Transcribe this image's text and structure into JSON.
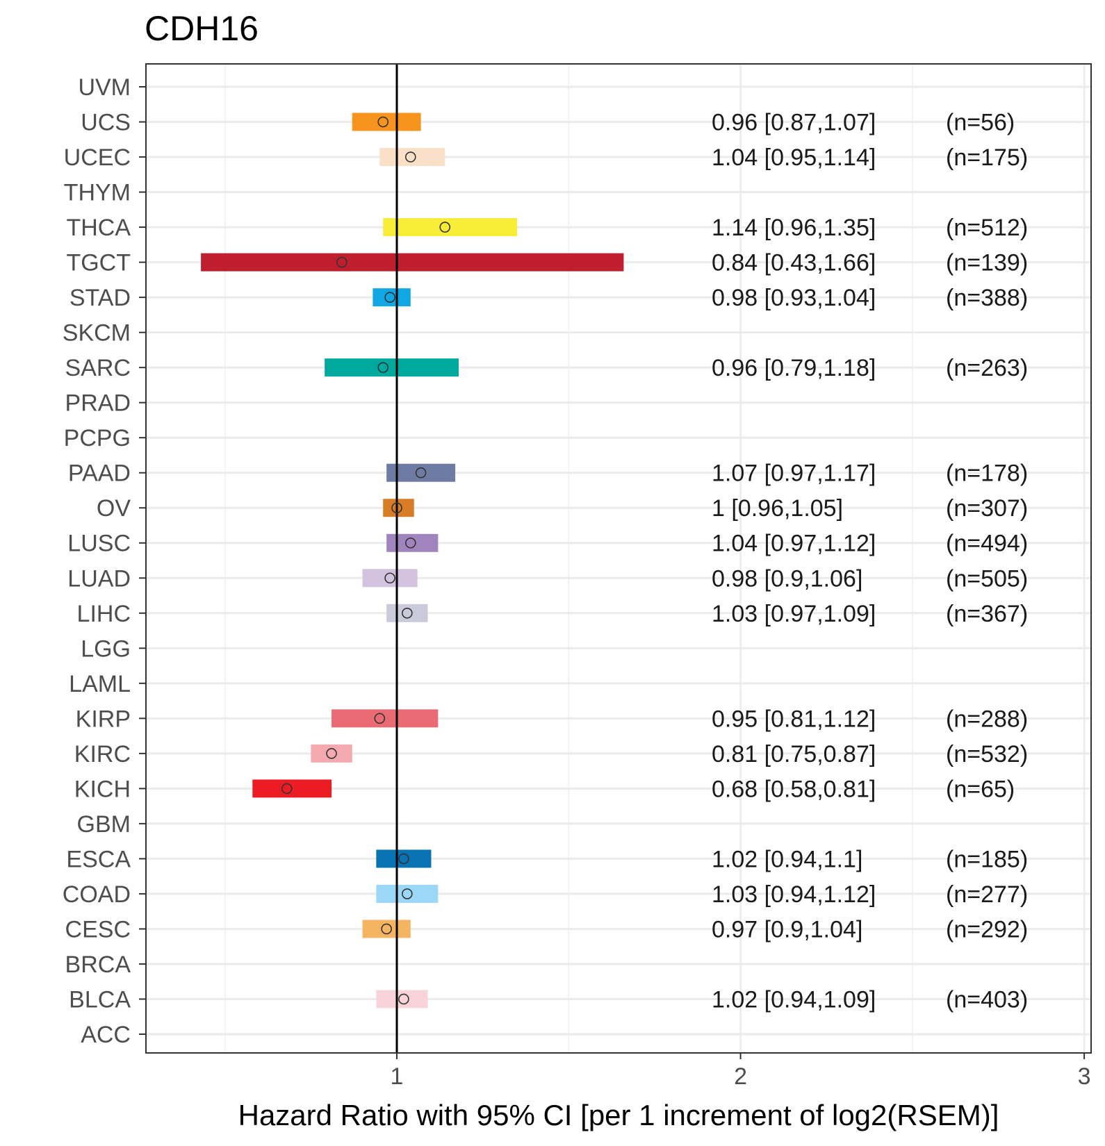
{
  "chart_data": {
    "type": "forest",
    "title": "CDH16",
    "xlabel": "Hazard Ratio with 95% CI [per 1 increment of log2(RSEM)]",
    "ylabel": "",
    "xlim": [
      0.27,
      3.02
    ],
    "xticks": [
      1,
      2,
      3
    ],
    "xtick_labels": [
      "1",
      "2",
      "3"
    ],
    "reference_line": 1,
    "grid": true,
    "rows": [
      {
        "label": "UVM"
      },
      {
        "label": "UCS",
        "hr": 0.96,
        "lower": 0.87,
        "upper": 1.07,
        "text": "0.96 [0.87,1.07]",
        "n": "(n=56)",
        "color": "#F7941D"
      },
      {
        "label": "UCEC",
        "hr": 1.04,
        "lower": 0.95,
        "upper": 1.14,
        "text": "1.04 [0.95,1.14]",
        "n": "(n=175)",
        "color": "#FBE0C8"
      },
      {
        "label": "THYM"
      },
      {
        "label": "THCA",
        "hr": 1.14,
        "lower": 0.96,
        "upper": 1.35,
        "text": "1.14 [0.96,1.35]",
        "n": "(n=512)",
        "color": "#F7EC37"
      },
      {
        "label": "TGCT",
        "hr": 0.84,
        "lower": 0.43,
        "upper": 1.66,
        "text": "0.84 [0.43,1.66]",
        "n": "(n=139)",
        "color": "#BE1E2D"
      },
      {
        "label": "STAD",
        "hr": 0.98,
        "lower": 0.93,
        "upper": 1.04,
        "text": "0.98 [0.93,1.04]",
        "n": "(n=388)",
        "color": "#11A7E4"
      },
      {
        "label": "SKCM"
      },
      {
        "label": "SARC",
        "hr": 0.96,
        "lower": 0.79,
        "upper": 1.18,
        "text": "0.96 [0.79,1.18]",
        "n": "(n=263)",
        "color": "#00A99D"
      },
      {
        "label": "PRAD"
      },
      {
        "label": "PCPG"
      },
      {
        "label": "PAAD",
        "hr": 1.07,
        "lower": 0.97,
        "upper": 1.17,
        "text": "1.07 [0.97,1.17]",
        "n": "(n=178)",
        "color": "#6E7BA2"
      },
      {
        "label": "OV",
        "hr": 1,
        "lower": 0.96,
        "upper": 1.05,
        "text": "1 [0.96,1.05]",
        "n": "(n=307)",
        "color": "#D97C27"
      },
      {
        "label": "LUSC",
        "hr": 1.04,
        "lower": 0.97,
        "upper": 1.12,
        "text": "1.04 [0.97,1.12]",
        "n": "(n=494)",
        "color": "#A084BD"
      },
      {
        "label": "LUAD",
        "hr": 0.98,
        "lower": 0.9,
        "upper": 1.06,
        "text": "0.98 [0.9,1.06]",
        "n": "(n=505)",
        "color": "#D3C3E0"
      },
      {
        "label": "LIHC",
        "hr": 1.03,
        "lower": 0.97,
        "upper": 1.09,
        "text": "1.03 [0.97,1.09]",
        "n": "(n=367)",
        "color": "#CACADA"
      },
      {
        "label": "LGG"
      },
      {
        "label": "LAML"
      },
      {
        "label": "KIRP",
        "hr": 0.95,
        "lower": 0.81,
        "upper": 1.12,
        "text": "0.95 [0.81,1.12]",
        "n": "(n=288)",
        "color": "#EA6B73"
      },
      {
        "label": "KIRC",
        "hr": 0.81,
        "lower": 0.75,
        "upper": 0.87,
        "text": "0.81 [0.75,0.87]",
        "n": "(n=532)",
        "color": "#F4A9B0"
      },
      {
        "label": "KICH",
        "hr": 0.68,
        "lower": 0.58,
        "upper": 0.81,
        "text": "0.68 [0.58,0.81]",
        "n": "(n=65)",
        "color": "#ED1C24"
      },
      {
        "label": "GBM"
      },
      {
        "label": "ESCA",
        "hr": 1.02,
        "lower": 0.94,
        "upper": 1.1,
        "text": "1.02 [0.94,1.1]",
        "n": "(n=185)",
        "color": "#0873B4"
      },
      {
        "label": "COAD",
        "hr": 1.03,
        "lower": 0.94,
        "upper": 1.12,
        "text": "1.03 [0.94,1.12]",
        "n": "(n=277)",
        "color": "#9BD8F7"
      },
      {
        "label": "CESC",
        "hr": 0.97,
        "lower": 0.9,
        "upper": 1.04,
        "text": "0.97 [0.9,1.04]",
        "n": "(n=292)",
        "color": "#F5B461"
      },
      {
        "label": "BRCA"
      },
      {
        "label": "BLCA",
        "hr": 1.02,
        "lower": 0.94,
        "upper": 1.09,
        "text": "1.02 [0.94,1.09]",
        "n": "(n=403)",
        "color": "#F9D3DA"
      },
      {
        "label": "ACC"
      }
    ]
  }
}
